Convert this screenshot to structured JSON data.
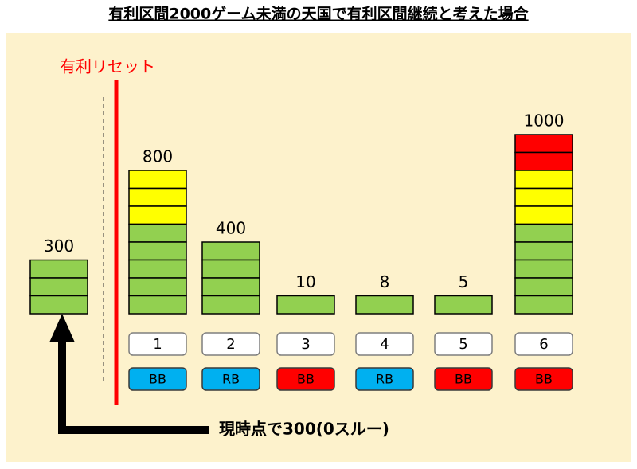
{
  "title": "有利区間2000ゲーム未満の天国で有利区間継続と考えた場合",
  "reset_label": "有利リセット",
  "current": {
    "label": "300",
    "blocks": [
      "#92d050",
      "#92d050",
      "#92d050"
    ]
  },
  "columns": [
    {
      "label": "800",
      "blocks": [
        "#ffff00",
        "#ffff00",
        "#ffff00",
        "#92d050",
        "#92d050",
        "#92d050",
        "#92d050",
        "#92d050"
      ],
      "number": "1",
      "bonus": "BB",
      "bonus_color": "#00b0f0"
    },
    {
      "label": "400",
      "blocks": [
        "#92d050",
        "#92d050",
        "#92d050",
        "#92d050"
      ],
      "number": "2",
      "bonus": "RB",
      "bonus_color": "#00b0f0"
    },
    {
      "label": "10",
      "blocks": [
        "#92d050"
      ],
      "number": "3",
      "bonus": "BB",
      "bonus_color": "#ff0000"
    },
    {
      "label": "8",
      "blocks": [
        "#92d050"
      ],
      "number": "4",
      "bonus": "RB",
      "bonus_color": "#00b0f0"
    },
    {
      "label": "5",
      "blocks": [
        "#92d050"
      ],
      "number": "5",
      "bonus": "BB",
      "bonus_color": "#ff0000"
    },
    {
      "label": "1000",
      "blocks": [
        "#ff0000",
        "#ff0000",
        "#ffff00",
        "#ffff00",
        "#ffff00",
        "#92d050",
        "#92d050",
        "#92d050",
        "#92d050",
        "#92d050"
      ],
      "number": "6",
      "bonus": "BB",
      "bonus_color": "#ff0000"
    }
  ],
  "note": "現時点で300(0スルー)"
}
